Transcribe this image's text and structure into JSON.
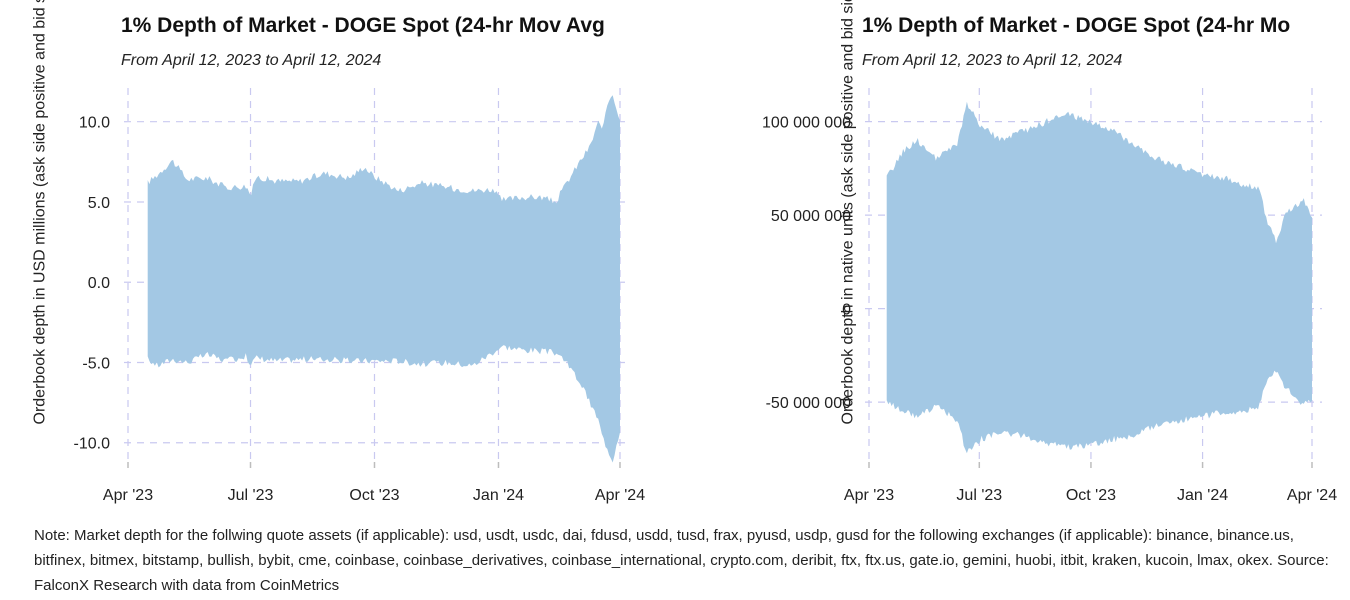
{
  "colors": {
    "fill": "#a3c8e4",
    "grid": "#c9c9f0",
    "axis": "#bdbdbd",
    "text": "#222222"
  },
  "note": "Note: Market depth for the follwing quote assets (if applicable): usd, usdt, usdc, dai, fdusd, usdd, tusd, frax, pyusd, usdp, gusd for the following exchanges (if applicable): binance, binance.us, bitfinex, bitmex, bitstamp, bullish, bybit, cme, coinbase, coinbase_derivatives, coinbase_international, crypto.com, deribit, ftx, ftx.us, gate.io, gemini, huobi, itbit, kraken, kucoin, lmax, okex. Source: FalconX Research with data from CoinMetrics",
  "chart_data": [
    {
      "type": "area",
      "title": "1% Depth of Market - DOGE Spot (24-hr Mov Avg",
      "subtitle": "From April 12, 2023 to April 12, 2024",
      "ylabel": "Orderbook depth in USD millions (ask side positive and bid side negative)",
      "xlabel": "",
      "ylim": [
        -11.2,
        12.1
      ],
      "x_ticks": [
        {
          "label": "Apr '23",
          "t": 0.0
        },
        {
          "label": "Jul '23",
          "t": 0.249
        },
        {
          "label": "Oct '23",
          "t": 0.501
        },
        {
          "label": "Jan '24",
          "t": 0.753
        },
        {
          "label": "Apr '24",
          "t": 1.0
        }
      ],
      "y_ticks": [
        {
          "label": "10.0",
          "value": 10.0
        },
        {
          "label": "5.0",
          "value": 5.0
        },
        {
          "label": "0.0",
          "value": 0.0
        },
        {
          "label": "-5.0",
          "value": -5.0
        },
        {
          "label": "-10.0",
          "value": -10.0
        }
      ],
      "data_range": [
        0.04,
        1.0
      ],
      "series": [
        {
          "name": "ask",
          "points": [
            [
              0.04,
              6.2
            ],
            [
              0.06,
              6.7
            ],
            [
              0.09,
              7.6
            ],
            [
              0.12,
              6.4
            ],
            [
              0.16,
              6.5
            ],
            [
              0.2,
              5.9
            ],
            [
              0.24,
              6.0
            ],
            [
              0.25,
              5.4
            ],
            [
              0.26,
              6.6
            ],
            [
              0.3,
              6.3
            ],
            [
              0.35,
              6.3
            ],
            [
              0.4,
              6.8
            ],
            [
              0.45,
              6.5
            ],
            [
              0.48,
              7.2
            ],
            [
              0.5,
              6.6
            ],
            [
              0.55,
              5.7
            ],
            [
              0.6,
              6.2
            ],
            [
              0.65,
              5.9
            ],
            [
              0.7,
              5.7
            ],
            [
              0.74,
              5.8
            ],
            [
              0.76,
              5.1
            ],
            [
              0.8,
              5.3
            ],
            [
              0.84,
              5.3
            ],
            [
              0.87,
              5.0
            ],
            [
              0.88,
              5.6
            ],
            [
              0.9,
              6.6
            ],
            [
              0.92,
              7.6
            ],
            [
              0.94,
              8.5
            ],
            [
              0.955,
              10.0
            ],
            [
              0.965,
              9.4
            ],
            [
              0.975,
              11.2
            ],
            [
              0.985,
              11.8
            ],
            [
              1.0,
              10.0
            ]
          ]
        },
        {
          "name": "bid",
          "points": [
            [
              0.04,
              -4.8
            ],
            [
              0.06,
              -5.2
            ],
            [
              0.09,
              -4.8
            ],
            [
              0.12,
              -5.0
            ],
            [
              0.16,
              -4.5
            ],
            [
              0.2,
              -4.9
            ],
            [
              0.24,
              -4.6
            ],
            [
              0.25,
              -5.1
            ],
            [
              0.26,
              -4.7
            ],
            [
              0.3,
              -4.9
            ],
            [
              0.35,
              -4.8
            ],
            [
              0.4,
              -4.8
            ],
            [
              0.45,
              -4.9
            ],
            [
              0.5,
              -4.9
            ],
            [
              0.55,
              -4.9
            ],
            [
              0.6,
              -5.1
            ],
            [
              0.65,
              -5.0
            ],
            [
              0.7,
              -5.2
            ],
            [
              0.74,
              -4.4
            ],
            [
              0.76,
              -4.0
            ],
            [
              0.8,
              -4.2
            ],
            [
              0.84,
              -4.3
            ],
            [
              0.87,
              -4.4
            ],
            [
              0.88,
              -4.6
            ],
            [
              0.9,
              -5.4
            ],
            [
              0.92,
              -6.3
            ],
            [
              0.94,
              -7.6
            ],
            [
              0.955,
              -8.5
            ],
            [
              0.965,
              -9.7
            ],
            [
              0.975,
              -10.4
            ],
            [
              0.985,
              -11.1
            ],
            [
              1.0,
              -9.2
            ]
          ]
        }
      ]
    },
    {
      "type": "area",
      "title": "1% Depth of Market - DOGE Spot (24-hr Mo",
      "subtitle": "From April 12, 2023 to April 12, 2024",
      "ylabel": "Orderbook depth in native units (ask side positive and bid side negative)",
      "xlabel": "",
      "ylim": [
        -82000000,
        118000000
      ],
      "x_ticks": [
        {
          "label": "Apr '23",
          "t": 0.0
        },
        {
          "label": "Jul '23",
          "t": 0.249
        },
        {
          "label": "Oct '23",
          "t": 0.501
        },
        {
          "label": "Jan '24",
          "t": 0.753
        },
        {
          "label": "Apr '24",
          "t": 1.0
        }
      ],
      "y_ticks": [
        {
          "label": "100 000 000",
          "value": 100000000
        },
        {
          "label": "50 000 000",
          "value": 50000000
        },
        {
          "label": "0",
          "value": 0
        },
        {
          "label": "-50 000 000",
          "value": -50000000
        }
      ],
      "data_range": [
        0.04,
        1.0
      ],
      "series": [
        {
          "name": "ask",
          "points": [
            [
              0.04,
              70000000
            ],
            [
              0.08,
              85000000
            ],
            [
              0.11,
              90000000
            ],
            [
              0.15,
              80000000
            ],
            [
              0.2,
              88000000
            ],
            [
              0.22,
              110000000
            ],
            [
              0.25,
              98000000
            ],
            [
              0.3,
              90000000
            ],
            [
              0.35,
              95000000
            ],
            [
              0.4,
              100000000
            ],
            [
              0.45,
              104000000
            ],
            [
              0.5,
              100000000
            ],
            [
              0.55,
              95000000
            ],
            [
              0.6,
              88000000
            ],
            [
              0.65,
              80000000
            ],
            [
              0.7,
              76000000
            ],
            [
              0.75,
              72000000
            ],
            [
              0.8,
              70000000
            ],
            [
              0.85,
              66000000
            ],
            [
              0.88,
              65000000
            ],
            [
              0.9,
              45000000
            ],
            [
              0.92,
              36000000
            ],
            [
              0.94,
              50000000
            ],
            [
              0.96,
              55000000
            ],
            [
              0.98,
              58000000
            ],
            [
              1.0,
              50000000
            ]
          ]
        },
        {
          "name": "bid",
          "points": [
            [
              0.04,
              -50000000
            ],
            [
              0.08,
              -55000000
            ],
            [
              0.11,
              -58000000
            ],
            [
              0.15,
              -52000000
            ],
            [
              0.2,
              -60000000
            ],
            [
              0.22,
              -77000000
            ],
            [
              0.25,
              -70000000
            ],
            [
              0.3,
              -66000000
            ],
            [
              0.35,
              -68000000
            ],
            [
              0.4,
              -72000000
            ],
            [
              0.45,
              -74000000
            ],
            [
              0.5,
              -73000000
            ],
            [
              0.55,
              -70000000
            ],
            [
              0.6,
              -68000000
            ],
            [
              0.65,
              -62000000
            ],
            [
              0.7,
              -60000000
            ],
            [
              0.75,
              -58000000
            ],
            [
              0.8,
              -55000000
            ],
            [
              0.85,
              -55000000
            ],
            [
              0.88,
              -52000000
            ],
            [
              0.9,
              -38000000
            ],
            [
              0.92,
              -33000000
            ],
            [
              0.94,
              -42000000
            ],
            [
              0.96,
              -46000000
            ],
            [
              0.98,
              -52000000
            ],
            [
              1.0,
              -48000000
            ]
          ]
        }
      ]
    }
  ]
}
